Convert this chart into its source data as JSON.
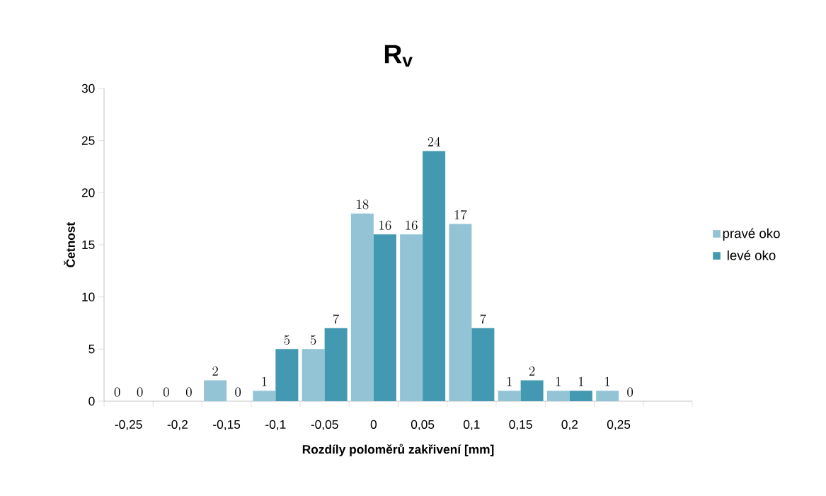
{
  "chart_data": {
    "type": "bar",
    "title": "R$_{v}$",
    "xlabel": "Rozdíly poloměrů zakřivení [mm]",
    "ylabel": "Četnost",
    "categories": [
      "-0,25",
      "-0,2",
      "-0,15",
      "-0,1",
      "-0,05",
      "0",
      "0,05",
      "0,1",
      "0,15",
      "0,2",
      "0,25",
      null
    ],
    "series": [
      {
        "name": "pravé oko",
        "color": "#93c4d5",
        "values": [
          0,
          0,
          2,
          1,
          5,
          18,
          16,
          17,
          1,
          1,
          1,
          null
        ]
      },
      {
        "name": "levé oko",
        "color": "#4399b1",
        "values": [
          0,
          0,
          0,
          5,
          7,
          16,
          24,
          7,
          2,
          1,
          0,
          null
        ]
      }
    ],
    "ylim": [
      0,
      30
    ],
    "yticks": [
      0,
      5,
      10,
      15,
      20,
      25,
      30
    ],
    "data_labels": true,
    "legend": "right"
  }
}
